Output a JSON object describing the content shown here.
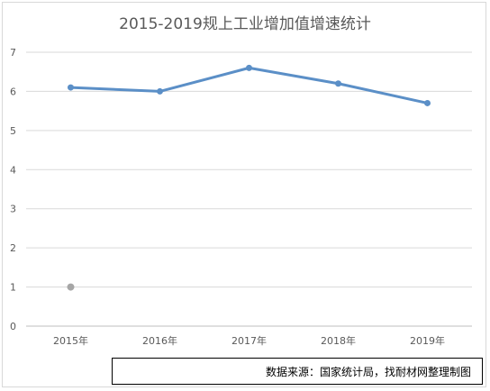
{
  "chart_data": {
    "type": "line",
    "title": "2015-2019规上工业增加值增速统计",
    "categories": [
      "2015年",
      "2016年",
      "2017年",
      "2018年",
      "2019年"
    ],
    "series": [
      {
        "values": [
          6.1,
          6.0,
          6.6,
          6.2,
          5.7
        ],
        "color": "#5b8fc7"
      }
    ],
    "extra_points": [
      {
        "category": "2015年",
        "value": 1.0,
        "color": "#a6a6a6"
      }
    ],
    "ylim": [
      0,
      7
    ],
    "yticks": [
      "0",
      "1",
      "2",
      "3",
      "4",
      "5",
      "6",
      "7"
    ],
    "grid": true,
    "xlabel": "",
    "ylabel": ""
  },
  "footer": {
    "source_text": "数据来源：国家统计局，找耐材网整理制图"
  }
}
